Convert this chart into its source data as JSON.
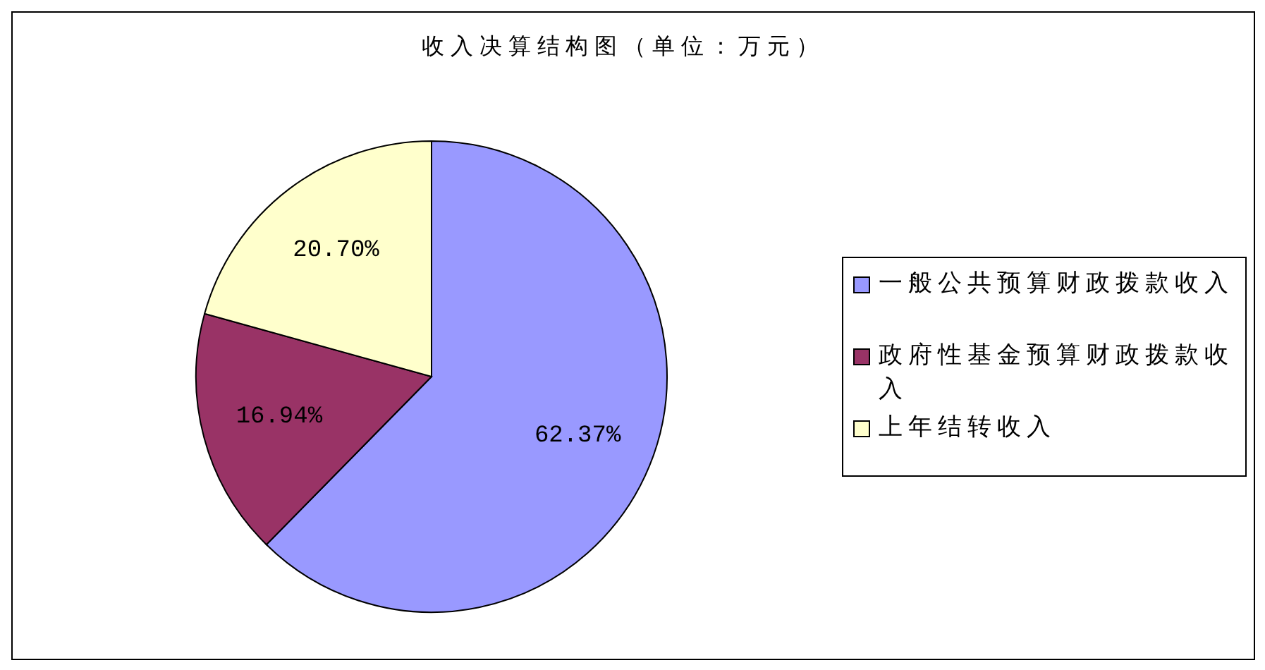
{
  "chart_data": {
    "type": "pie",
    "title": "收入决算结构图（单位：万元）",
    "categories": [
      "一般公共预算财政拨款收入",
      "政府性基金预算财政拨款收入",
      "上年结转收入"
    ],
    "values": [
      62.37,
      16.94,
      20.7
    ],
    "colors": [
      "#9999ff",
      "#993366",
      "#ffffcc"
    ],
    "value_labels": [
      "62.37%",
      "16.94%",
      "20.70%"
    ],
    "legend": "right"
  }
}
